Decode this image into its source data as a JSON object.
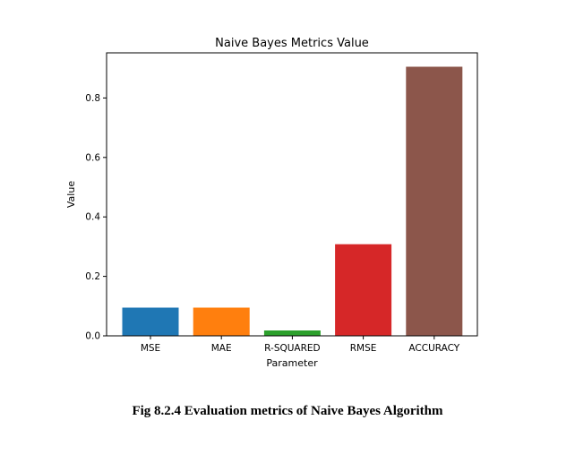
{
  "caption": "Fig 8.2.4 Evaluation metrics of Naive Bayes Algorithm",
  "chart_data": {
    "type": "bar",
    "title": "Naive Bayes Metrics Value",
    "xlabel": "Parameter",
    "ylabel": "Value",
    "categories": [
      "MSE",
      "MAE",
      "R-SQUARED",
      "RMSE",
      "ACCURACY"
    ],
    "values": [
      0.095,
      0.095,
      0.018,
      0.308,
      0.905
    ],
    "colors": [
      "#1f77b4",
      "#ff7f0e",
      "#2ca02c",
      "#d62728",
      "#8c564b"
    ],
    "yticks": [
      "0.0",
      "0.2",
      "0.4",
      "0.6",
      "0.8"
    ],
    "ylim": [
      0,
      0.95
    ],
    "grid": false,
    "legend": "none"
  }
}
